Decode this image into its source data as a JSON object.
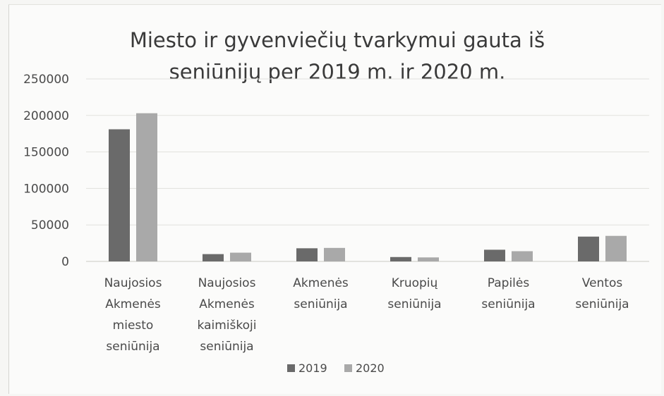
{
  "chart_data": {
    "type": "bar",
    "title_lines": [
      "Miesto ir gyvenviečių tvarkymui gauta iš",
      "seniūnijų per 2019 m. ir 2020 m."
    ],
    "categories": [
      [
        "Naujosios",
        "Akmenės",
        "miesto",
        "seniūnija"
      ],
      [
        "Naujosios",
        "Akmenės",
        "kaimiškoji",
        "seniūnija"
      ],
      [
        "Akmenės",
        "seniūnija"
      ],
      [
        "Kruopių",
        "seniūnija"
      ],
      [
        "Papilės",
        "seniūnija"
      ],
      [
        "Ventos",
        "seniūnija"
      ]
    ],
    "series": [
      {
        "name": "2019",
        "color": "#6a6a6a",
        "values": [
          181000,
          10000,
          18000,
          6000,
          16000,
          34000
        ]
      },
      {
        "name": "2020",
        "color": "#a9a9a9",
        "values": [
          203000,
          12000,
          18500,
          5500,
          14000,
          35000
        ]
      }
    ],
    "ylim": [
      0,
      250000
    ],
    "yticks": [
      "250000",
      "200000",
      "150000",
      "100000",
      "50000",
      "0"
    ],
    "grid": true,
    "legend_position": "bottom"
  }
}
